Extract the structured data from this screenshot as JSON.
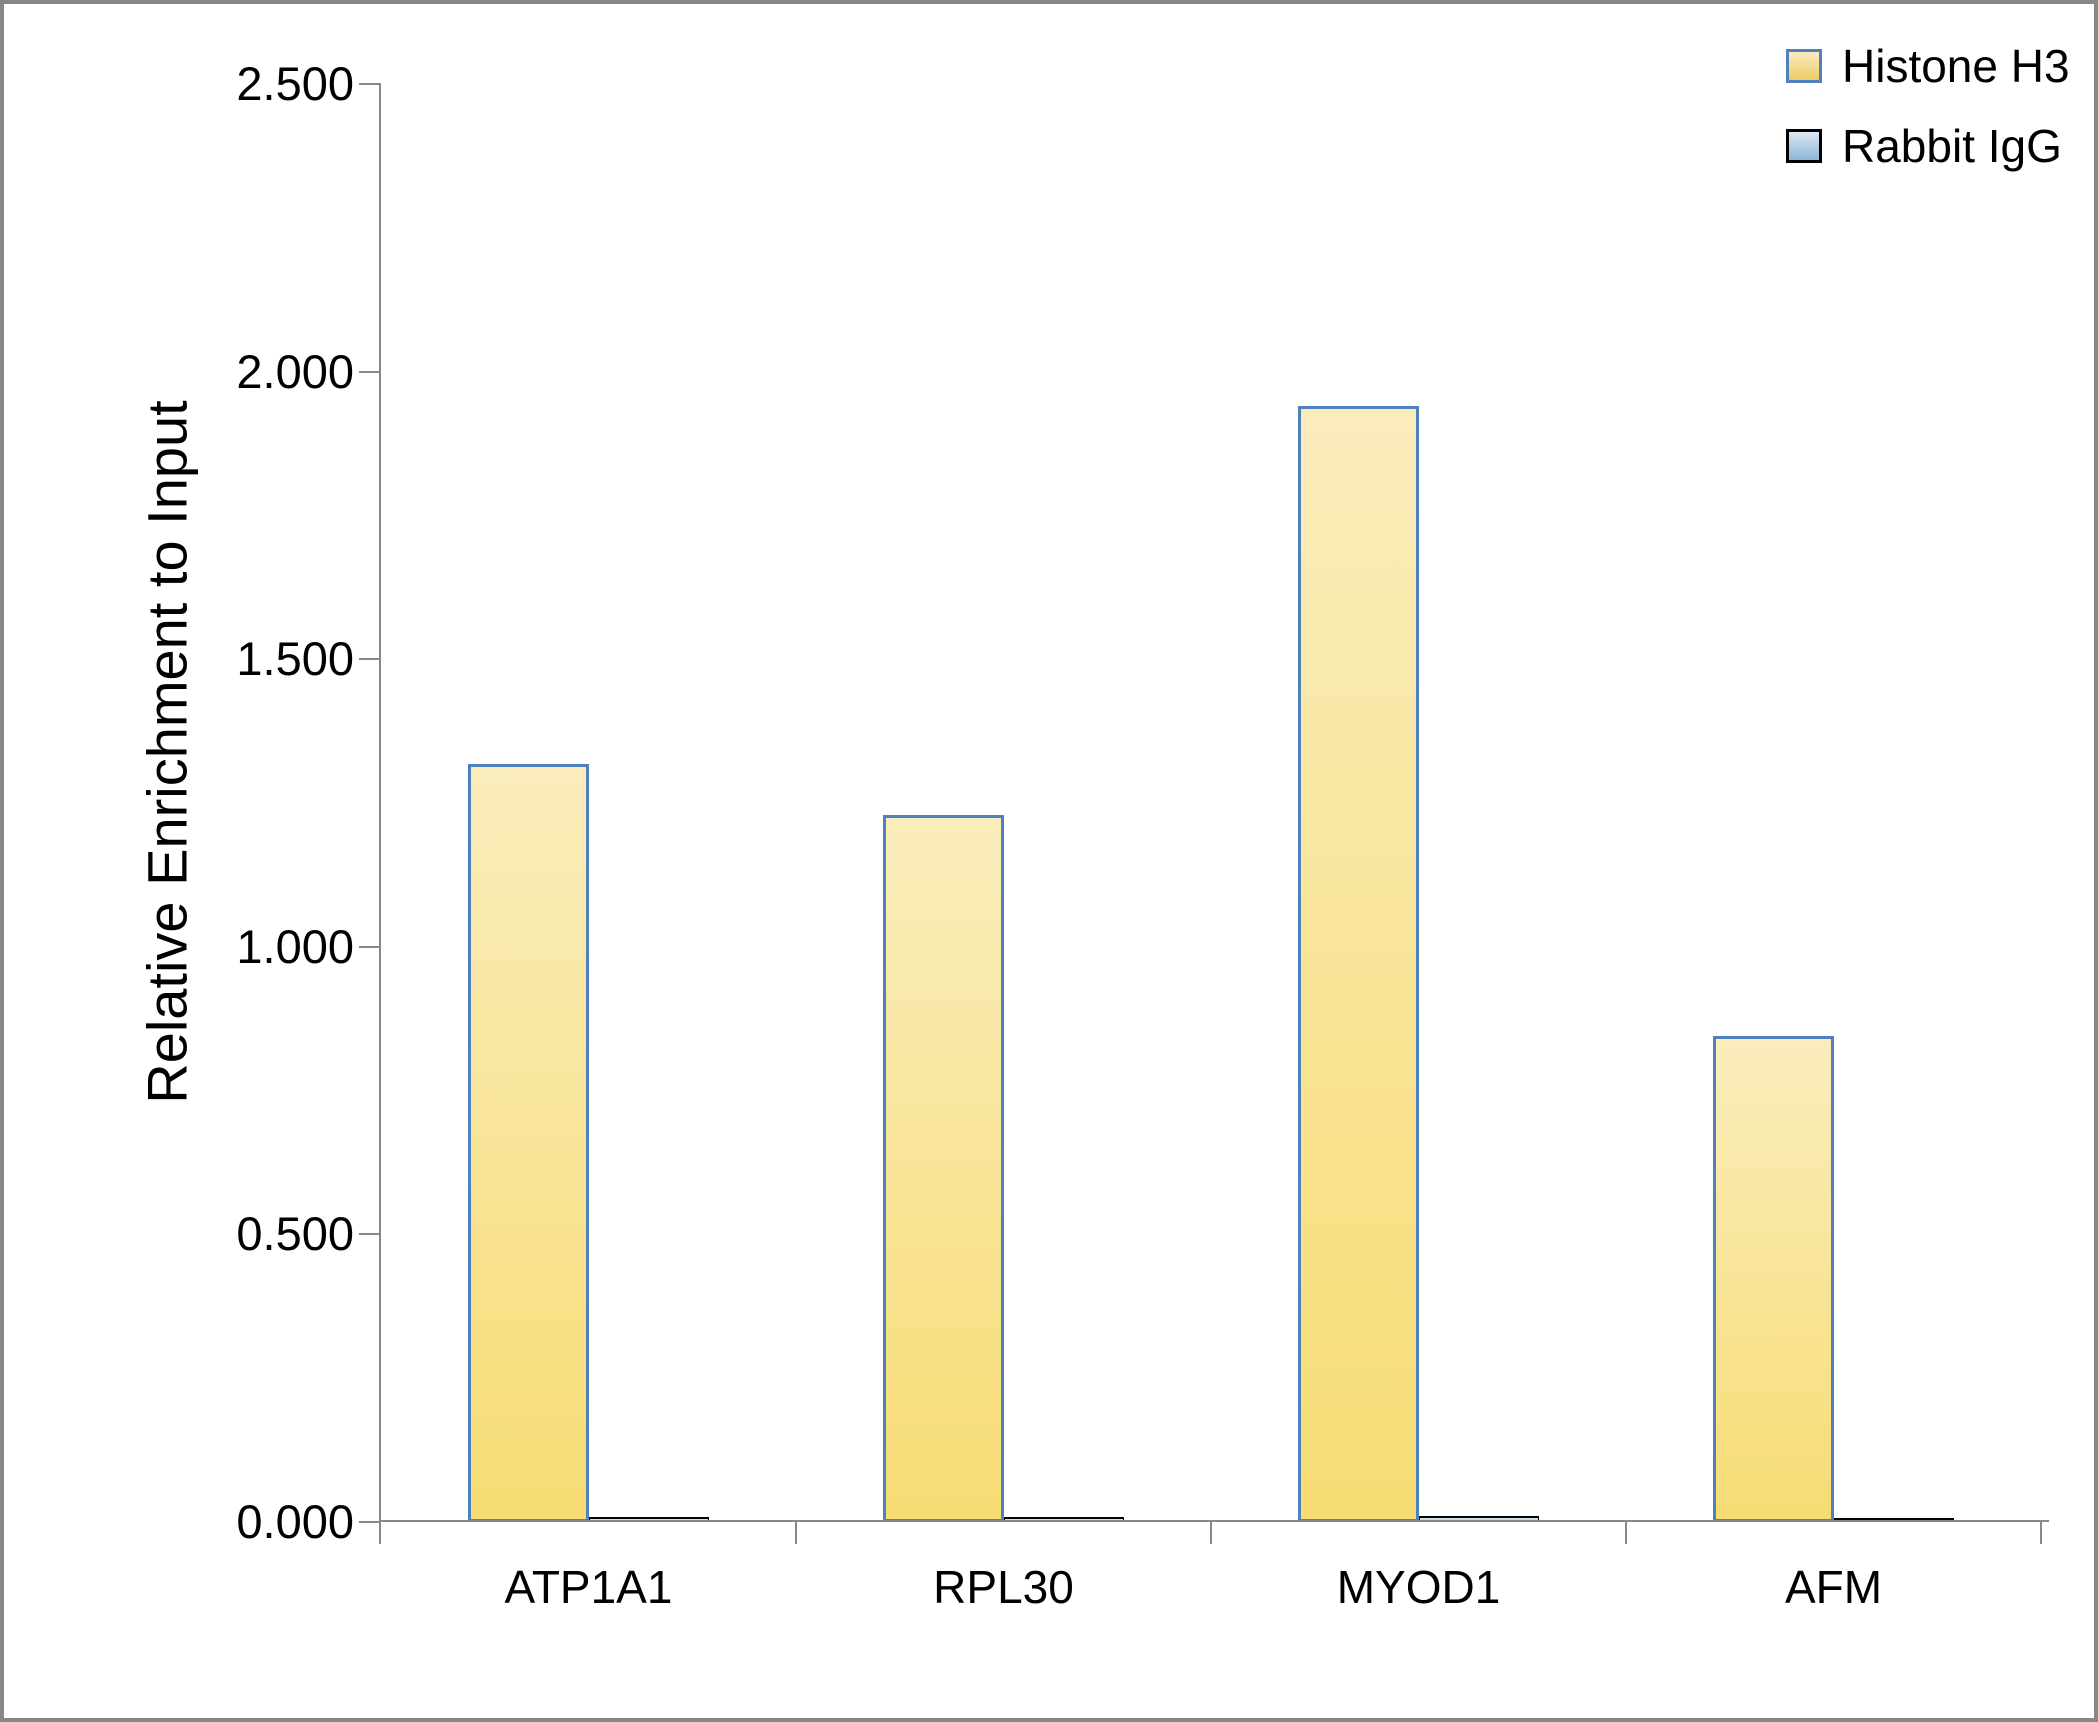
{
  "chart_data": {
    "type": "bar",
    "title": "",
    "xlabel": "",
    "ylabel": "Relative Enrichment to Input",
    "categories": [
      "ATP1A1",
      "RPL30",
      "MYOD1",
      "AFM"
    ],
    "series": [
      {
        "name": "Histone H3",
        "values": [
          1.318,
          1.229,
          1.94,
          0.845
        ]
      },
      {
        "name": "Rabbit IgG",
        "values": [
          0.008,
          0.008,
          0.011,
          0.007
        ]
      }
    ],
    "ylim": [
      0,
      2.5
    ],
    "ytick_labels": [
      "0.000",
      "0.500",
      "1.000",
      "1.500",
      "2.000",
      "2.500"
    ],
    "grid": false,
    "legend_position": "top-right",
    "colors": {
      "histone_fill_top": "#FAEDBC",
      "histone_fill_bottom": "#F7DC74",
      "histone_border": "#4F81BD",
      "igg_fill_top": "#D9E8F3",
      "igg_fill_bottom": "#9FC0DC",
      "igg_border": "#000000",
      "legend_yellow_top": "#F9ECC0",
      "legend_yellow_bottom": "#EECC63",
      "legend_blue_top": "#DCE9F4",
      "legend_blue_bottom": "#8CB6D7",
      "axis": "#898989",
      "text": "#000000"
    }
  }
}
